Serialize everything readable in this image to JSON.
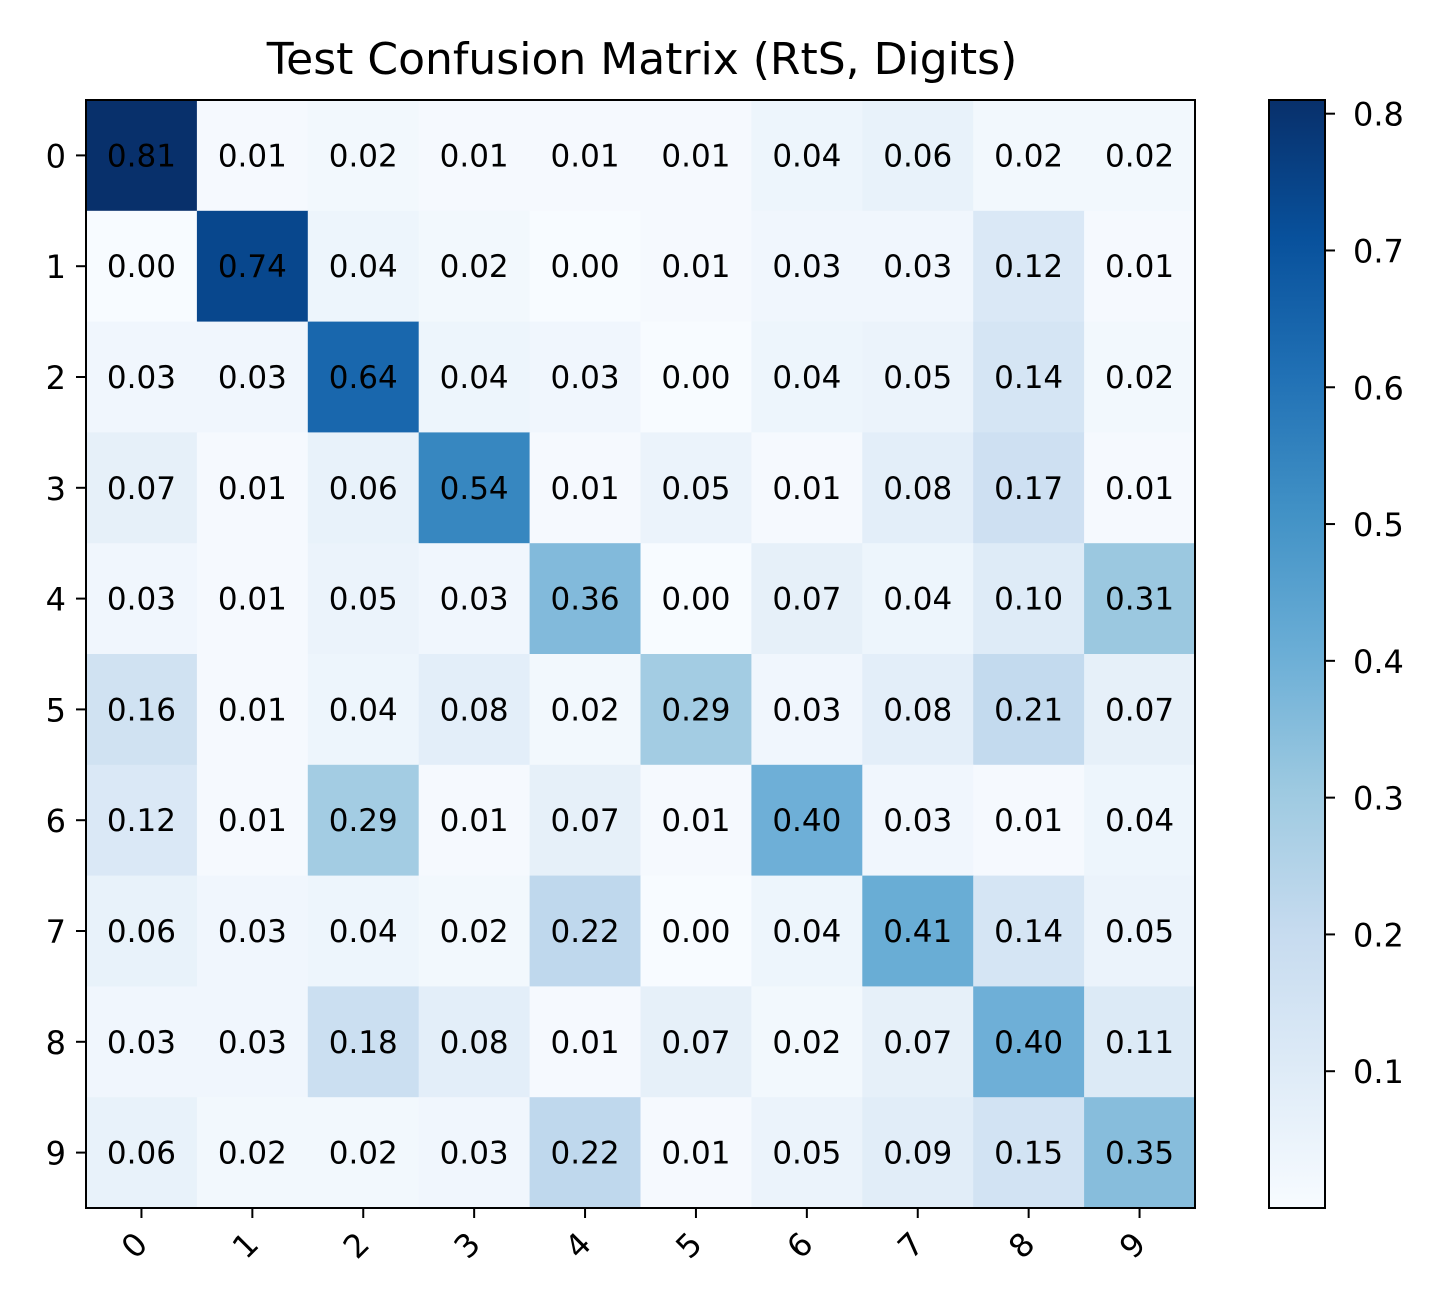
{
  "chart_data": {
    "type": "heatmap",
    "title": "Test Confusion Matrix (RtS, Digits)",
    "xlabel": "",
    "ylabel": "",
    "x_categories": [
      "0",
      "1",
      "2",
      "3",
      "4",
      "5",
      "6",
      "7",
      "8",
      "9"
    ],
    "y_categories": [
      "0",
      "1",
      "2",
      "3",
      "4",
      "5",
      "6",
      "7",
      "8",
      "9"
    ],
    "values": [
      [
        0.81,
        0.01,
        0.02,
        0.01,
        0.01,
        0.01,
        0.04,
        0.06,
        0.02,
        0.02
      ],
      [
        0.0,
        0.74,
        0.04,
        0.02,
        0.0,
        0.01,
        0.03,
        0.03,
        0.12,
        0.01
      ],
      [
        0.03,
        0.03,
        0.64,
        0.04,
        0.03,
        0.0,
        0.04,
        0.05,
        0.14,
        0.02
      ],
      [
        0.07,
        0.01,
        0.06,
        0.54,
        0.01,
        0.05,
        0.01,
        0.08,
        0.17,
        0.01
      ],
      [
        0.03,
        0.01,
        0.05,
        0.03,
        0.36,
        0.0,
        0.07,
        0.04,
        0.1,
        0.31
      ],
      [
        0.16,
        0.01,
        0.04,
        0.08,
        0.02,
        0.29,
        0.03,
        0.08,
        0.21,
        0.07
      ],
      [
        0.12,
        0.01,
        0.29,
        0.01,
        0.07,
        0.01,
        0.4,
        0.03,
        0.01,
        0.04
      ],
      [
        0.06,
        0.03,
        0.04,
        0.02,
        0.22,
        0.0,
        0.04,
        0.41,
        0.14,
        0.05
      ],
      [
        0.03,
        0.03,
        0.18,
        0.08,
        0.01,
        0.07,
        0.02,
        0.07,
        0.4,
        0.11
      ],
      [
        0.06,
        0.02,
        0.02,
        0.03,
        0.22,
        0.01,
        0.05,
        0.09,
        0.15,
        0.35
      ]
    ],
    "colormap": "Blues",
    "color_range": [
      0.0,
      0.81
    ],
    "colorbar_ticks": [
      "0.1",
      "0.2",
      "0.3",
      "0.4",
      "0.5",
      "0.6",
      "0.7",
      "0.8"
    ],
    "x_tick_rotation": "45 degrees",
    "grid": false,
    "legend": "colorbar-right"
  }
}
